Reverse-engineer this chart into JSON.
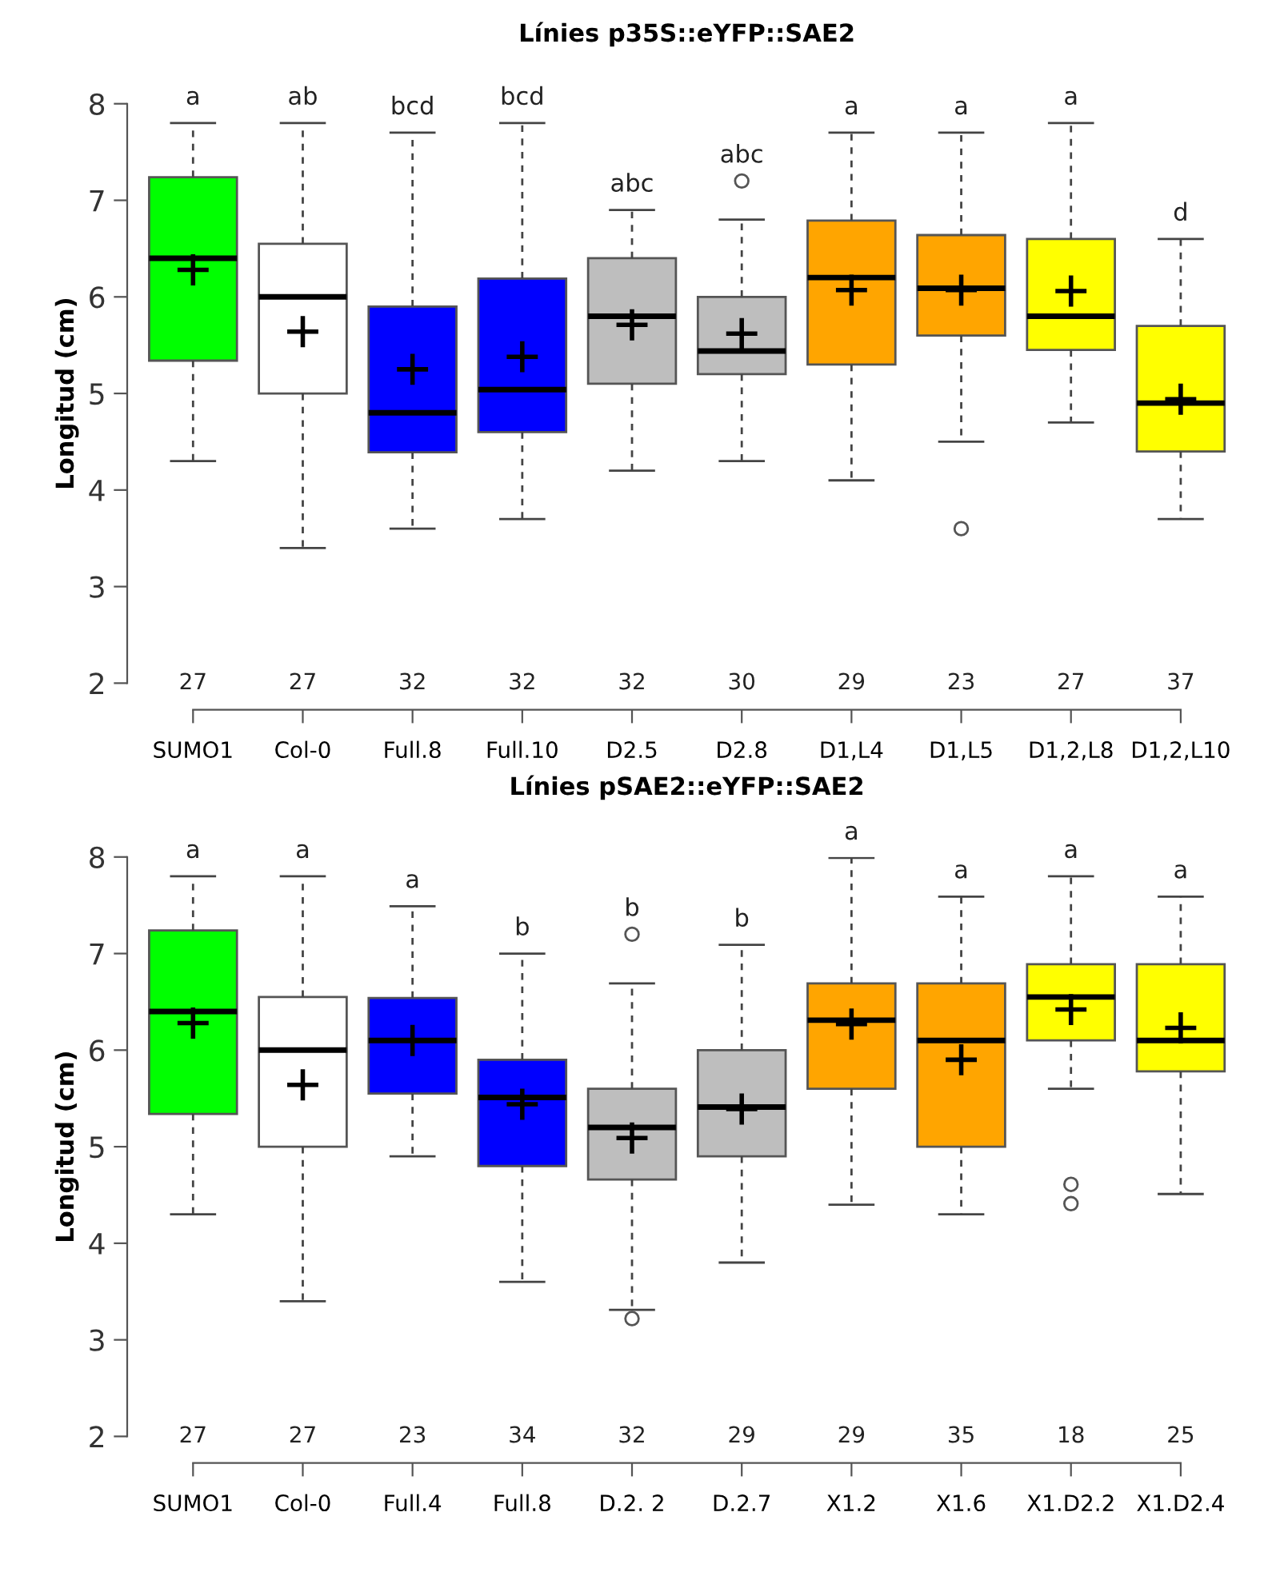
{
  "chart_data": [
    {
      "type": "box",
      "title": "Línies p35S::eYFP::SAE2",
      "ylabel": "Longitud (cm)",
      "categories": [
        "SUMO1",
        "Col-0",
        "Full.8",
        "Full.10",
        "D2.5",
        "D2.8",
        "D1,L4",
        "D1,L5",
        "D1,2,L8",
        "D1,2,L10"
      ],
      "colors": [
        "#00ff00",
        "#ffffff",
        "#0000ff",
        "#0000ff",
        "#bebebe",
        "#bebebe",
        "#ffa500",
        "#ffa500",
        "#ffff00",
        "#ffff00"
      ],
      "boxes": [
        {
          "low": 4.3,
          "q1": 5.34,
          "median": 6.4,
          "q3": 7.24,
          "high": 7.8,
          "mean": 6.28
        },
        {
          "low": 3.4,
          "q1": 5.0,
          "median": 6.0,
          "q3": 6.55,
          "high": 7.8,
          "mean": 5.64
        },
        {
          "low": 3.6,
          "q1": 4.39,
          "median": 4.8,
          "q3": 5.9,
          "high": 7.7,
          "mean": 5.25
        },
        {
          "low": 3.7,
          "q1": 4.6,
          "median": 5.04,
          "q3": 6.19,
          "high": 7.8,
          "mean": 5.38
        },
        {
          "low": 4.2,
          "q1": 5.1,
          "median": 5.8,
          "q3": 6.4,
          "high": 6.9,
          "mean": 5.71
        },
        {
          "low": 4.3,
          "q1": 5.2,
          "median": 5.44,
          "q3": 6.0,
          "high": 6.8,
          "mean": 5.62,
          "outliers": [
            7.2
          ]
        },
        {
          "low": 4.1,
          "q1": 5.3,
          "median": 6.2,
          "q3": 6.79,
          "high": 7.7,
          "mean": 6.07
        },
        {
          "low": 4.5,
          "q1": 5.6,
          "median": 6.09,
          "q3": 6.64,
          "high": 7.7,
          "mean": 6.07,
          "outliers": [
            3.6
          ]
        },
        {
          "low": 4.7,
          "q1": 5.45,
          "median": 5.8,
          "q3": 6.6,
          "high": 7.8,
          "mean": 6.06
        },
        {
          "low": 3.7,
          "q1": 4.4,
          "median": 4.9,
          "q3": 5.7,
          "high": 6.6,
          "mean": 4.94
        }
      ],
      "ylim": [
        2,
        8
      ],
      "yticks": [
        2,
        3,
        4,
        5,
        6,
        7,
        8
      ],
      "marker": "circle",
      "annotations": [
        "a",
        "ab",
        "bcd",
        "bcd",
        "abc",
        "abc",
        "a",
        "a",
        "a",
        "d",
        "27",
        "27",
        "32",
        "32",
        "32",
        "30",
        "29",
        "23",
        "27",
        "37"
      ]
    },
    {
      "type": "box",
      "title": "Línies pSAE2::eYFP::SAE2",
      "ylabel": "Longitud (cm)",
      "categories": [
        "SUMO1",
        "Col-0",
        "Full.4",
        "Full.8",
        "D.2. 2",
        "D.2.7",
        "X1.2",
        "X1.6",
        "X1.D2.2",
        "X1.D2.4"
      ],
      "colors": [
        "#00ff00",
        "#ffffff",
        "#0000ff",
        "#0000ff",
        "#bebebe",
        "#bebebe",
        "#ffa500",
        "#ffa500",
        "#ffff00",
        "#ffff00"
      ],
      "boxes": [
        {
          "low": 4.3,
          "q1": 5.34,
          "median": 6.4,
          "q3": 7.24,
          "high": 7.8,
          "mean": 6.28
        },
        {
          "low": 3.4,
          "q1": 5.0,
          "median": 6.0,
          "q3": 6.55,
          "high": 7.8,
          "mean": 5.64
        },
        {
          "low": 4.9,
          "q1": 5.55,
          "median": 6.1,
          "q3": 6.54,
          "high": 7.49,
          "mean": 6.1
        },
        {
          "low": 3.6,
          "q1": 4.8,
          "median": 5.51,
          "q3": 5.9,
          "high": 7.0,
          "mean": 5.44
        },
        {
          "low": 3.31,
          "q1": 4.66,
          "median": 5.2,
          "q3": 5.6,
          "high": 6.69,
          "mean": 5.09,
          "outliers": [
            7.2,
            3.22
          ]
        },
        {
          "low": 3.8,
          "q1": 4.9,
          "median": 5.41,
          "q3": 6.0,
          "high": 7.09,
          "mean": 5.39
        },
        {
          "low": 4.4,
          "q1": 5.6,
          "median": 6.31,
          "q3": 6.69,
          "high": 7.99,
          "mean": 6.27
        },
        {
          "low": 4.3,
          "q1": 5.0,
          "median": 6.1,
          "q3": 6.69,
          "high": 7.59,
          "mean": 5.9
        },
        {
          "low": 5.6,
          "q1": 6.1,
          "median": 6.55,
          "q3": 6.89,
          "high": 7.8,
          "mean": 6.42,
          "outliers": [
            4.61,
            4.41
          ]
        },
        {
          "low": 4.51,
          "q1": 5.78,
          "median": 6.1,
          "q3": 6.89,
          "high": 7.59,
          "mean": 6.23
        }
      ],
      "ylim": [
        2,
        8
      ],
      "yticks": [
        2,
        3,
        4,
        5,
        6,
        7,
        8
      ],
      "marker": "circle",
      "annotations": [
        "a",
        "a",
        "a",
        "b",
        "b",
        "b",
        "a",
        "a",
        "a",
        "a",
        "27",
        "27",
        "23",
        "34",
        "32",
        "29",
        "29",
        "35",
        "18",
        "25"
      ]
    }
  ]
}
